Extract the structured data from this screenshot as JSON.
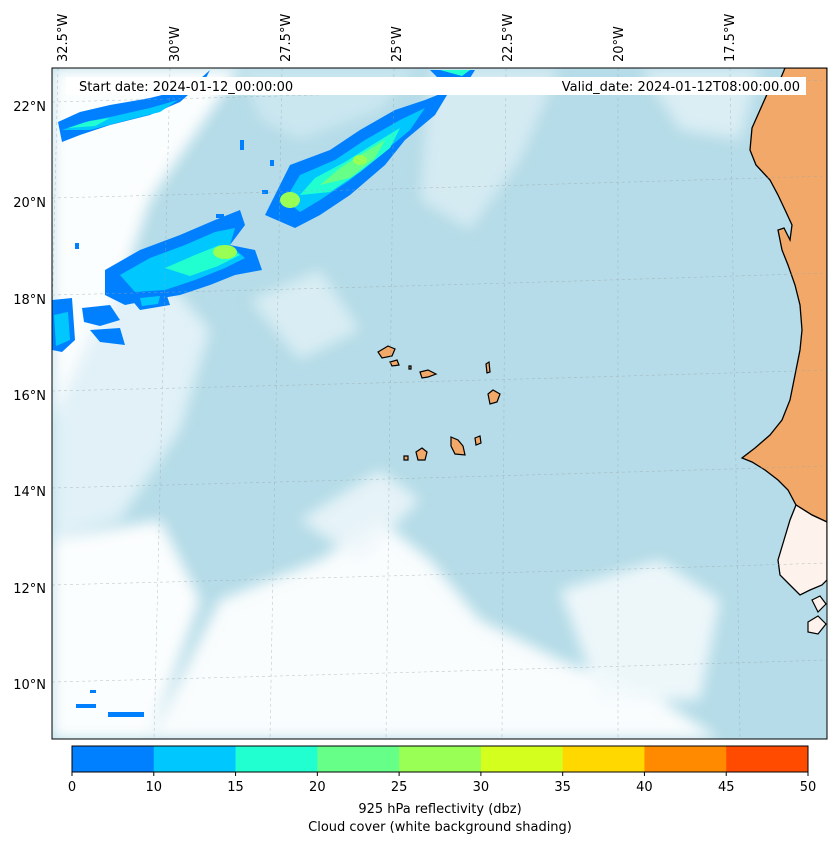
{
  "header": {
    "start_date": "Start date: 2024-01-12_00:00:00",
    "valid_date": "Valid_date: 2024-01-12T08:00:00.00"
  },
  "axes": {
    "lon_labels": [
      "32.5°W",
      "30°W",
      "27.5°W",
      "25°W",
      "22.5°W",
      "20°W",
      "17.5°W"
    ],
    "lat_labels": [
      "22°N",
      "20°N",
      "18°N",
      "16°N",
      "14°N",
      "12°N",
      "10°N"
    ]
  },
  "colorbar": {
    "ticks": [
      "0",
      "10",
      "15",
      "20",
      "25",
      "30",
      "35",
      "40",
      "45",
      "50"
    ],
    "colors": [
      "#0080ff",
      "#00c8ff",
      "#21ffd0",
      "#66ff88",
      "#99ff55",
      "#d4ff1e",
      "#ffd800",
      "#ff8a00",
      "#ff4b00"
    ],
    "label_line1": "925 hPa reflectivity (dbz)",
    "label_line2": "Cloud cover (white background shading)"
  },
  "colors": {
    "ocean": "#b8dde9",
    "land": "#f2a868",
    "cloud": "#ffffff"
  }
}
